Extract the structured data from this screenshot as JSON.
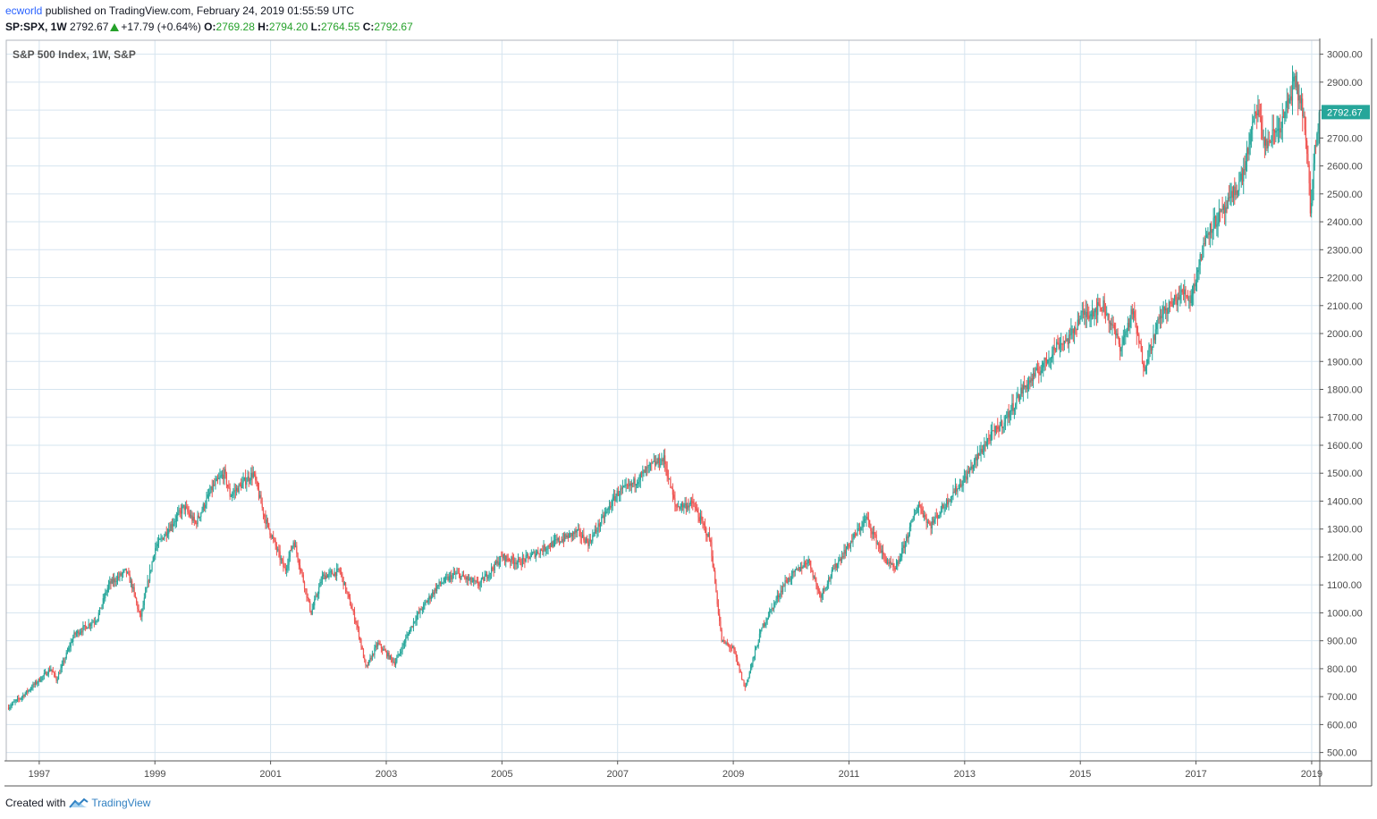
{
  "header": {
    "author": "ecworld",
    "published_text": "published on TradingView.com, February 24, 2019 01:55:59 UTC",
    "symbol_interval": "SP:SPX, 1W",
    "last_price": "2792.67",
    "change": "+17.79 (+0.64%)",
    "open_label": "O:",
    "open": "2769.28",
    "high_label": "H:",
    "high": "2794.20",
    "low_label": "L:",
    "low": "2764.55",
    "close_label": "C:",
    "close": "2792.67"
  },
  "footer": {
    "created_with": "Created with",
    "brand": "TradingView"
  },
  "chart_data": {
    "type": "candlestick",
    "title": "S&P 500 Index, 1W, S&P",
    "last_price_label": "2792.67",
    "y_ticks": [
      "500.00",
      "600.00",
      "700.00",
      "800.00",
      "900.00",
      "1000.00",
      "1100.00",
      "1200.00",
      "1300.00",
      "1400.00",
      "1500.00",
      "1600.00",
      "1700.00",
      "1800.00",
      "1900.00",
      "2000.00",
      "2100.00",
      "2200.00",
      "2300.00",
      "2400.00",
      "2500.00",
      "2600.00",
      "2700.00",
      "2800.00",
      "2900.00",
      "3000.00"
    ],
    "x_ticks": [
      "1997",
      "1999",
      "2001",
      "2003",
      "2005",
      "2007",
      "2009",
      "2011",
      "2013",
      "2015",
      "2017",
      "2019"
    ],
    "x_range": [
      1996.43,
      2019.14
    ],
    "y_range": [
      470,
      3050
    ],
    "grid": true,
    "colors": {
      "up": "#26a69a",
      "down": "#ef5350",
      "grid": "#d6e4ef",
      "axis_text": "#4a4a4a"
    },
    "path_points": [
      [
        1996.45,
        660
      ],
      [
        1996.7,
        700
      ],
      [
        1997.0,
        760
      ],
      [
        1997.2,
        800
      ],
      [
        1997.3,
        760
      ],
      [
        1997.6,
        920
      ],
      [
        1997.8,
        950
      ],
      [
        1998.0,
        980
      ],
      [
        1998.2,
        1100
      ],
      [
        1998.5,
        1150
      ],
      [
        1998.6,
        1100
      ],
      [
        1998.75,
        980
      ],
      [
        1999.0,
        1230
      ],
      [
        1999.3,
        1320
      ],
      [
        1999.5,
        1380
      ],
      [
        1999.7,
        1320
      ],
      [
        2000.0,
        1450
      ],
      [
        2000.2,
        1500
      ],
      [
        2000.3,
        1420
      ],
      [
        2000.7,
        1500
      ],
      [
        2000.9,
        1340
      ],
      [
        2001.25,
        1150
      ],
      [
        2001.4,
        1260
      ],
      [
        2001.7,
        1000
      ],
      [
        2001.9,
        1130
      ],
      [
        2002.2,
        1150
      ],
      [
        2002.5,
        950
      ],
      [
        2002.65,
        800
      ],
      [
        2002.85,
        890
      ],
      [
        2003.15,
        820
      ],
      [
        2003.5,
        980
      ],
      [
        2003.9,
        1100
      ],
      [
        2004.2,
        1140
      ],
      [
        2004.6,
        1100
      ],
      [
        2005.0,
        1200
      ],
      [
        2005.3,
        1180
      ],
      [
        2005.8,
        1240
      ],
      [
        2006.3,
        1290
      ],
      [
        2006.5,
        1250
      ],
      [
        2007.0,
        1430
      ],
      [
        2007.2,
        1450
      ],
      [
        2007.6,
        1530
      ],
      [
        2007.8,
        1550
      ],
      [
        2008.0,
        1380
      ],
      [
        2008.3,
        1390
      ],
      [
        2008.6,
        1260
      ],
      [
        2008.8,
        900
      ],
      [
        2009.0,
        870
      ],
      [
        2009.2,
        730
      ],
      [
        2009.5,
        950
      ],
      [
        2009.9,
        1110
      ],
      [
        2010.3,
        1190
      ],
      [
        2010.5,
        1060
      ],
      [
        2010.8,
        1180
      ],
      [
        2011.3,
        1340
      ],
      [
        2011.6,
        1200
      ],
      [
        2011.8,
        1150
      ],
      [
        2012.2,
        1390
      ],
      [
        2012.4,
        1310
      ],
      [
        2012.8,
        1430
      ],
      [
        2013.0,
        1480
      ],
      [
        2013.4,
        1620
      ],
      [
        2013.7,
        1690
      ],
      [
        2014.0,
        1800
      ],
      [
        2014.3,
        1870
      ],
      [
        2014.6,
        1960
      ],
      [
        2014.8,
        1980
      ],
      [
        2015.0,
        2060
      ],
      [
        2015.4,
        2100
      ],
      [
        2015.7,
        1950
      ],
      [
        2015.9,
        2080
      ],
      [
        2016.1,
        1880
      ],
      [
        2016.4,
        2070
      ],
      [
        2016.8,
        2150
      ],
      [
        2016.9,
        2120
      ],
      [
        2017.2,
        2370
      ],
      [
        2017.5,
        2440
      ],
      [
        2017.8,
        2560
      ],
      [
        2018.05,
        2810
      ],
      [
        2018.2,
        2670
      ],
      [
        2018.5,
        2760
      ],
      [
        2018.7,
        2900
      ],
      [
        2018.85,
        2800
      ],
      [
        2018.95,
        2550
      ],
      [
        2018.98,
        2430
      ],
      [
        2019.05,
        2650
      ],
      [
        2019.13,
        2792.67
      ]
    ]
  }
}
